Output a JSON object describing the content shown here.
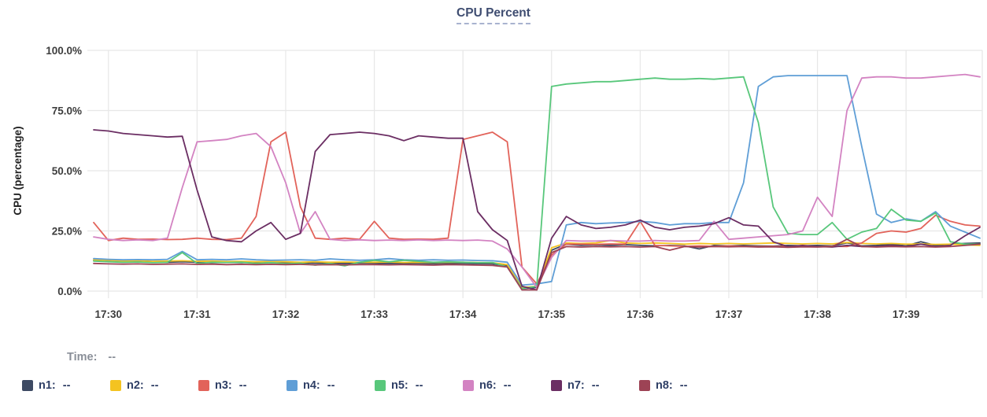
{
  "title": "CPU Percent",
  "time_row": {
    "label": "Time:",
    "value": "--"
  },
  "axes": {
    "y_title": "CPU (percentage)",
    "y_ticks": [
      {
        "label": "100.0%",
        "value": 100
      },
      {
        "label": "75.0%",
        "value": 75
      },
      {
        "label": "50.0%",
        "value": 50
      },
      {
        "label": "25.0%",
        "value": 25
      },
      {
        "label": "0.0%",
        "value": 0
      }
    ],
    "x_ticks": [
      "17:30",
      "17:31",
      "17:32",
      "17:33",
      "17:34",
      "17:35",
      "17:36",
      "17:37",
      "17:38",
      "17:39"
    ]
  },
  "colors": {
    "grid": "#e7e7e7",
    "axis_text": "#3d3d3d",
    "title_text": "#3f4d71",
    "legend_text": "#2f3f66",
    "time_text": "#8a8f98"
  },
  "chart_data": {
    "type": "line",
    "title": "CPU Percent",
    "xlabel": "",
    "ylabel": "CPU (percentage)",
    "ylim": [
      0,
      100
    ],
    "grid": true,
    "legend_position": "bottom",
    "x_times": [
      "17:29:50",
      "17:30:00",
      "17:30:10",
      "17:30:20",
      "17:30:30",
      "17:30:40",
      "17:30:50",
      "17:31:00",
      "17:31:10",
      "17:31:20",
      "17:31:30",
      "17:31:40",
      "17:31:50",
      "17:32:00",
      "17:32:10",
      "17:32:20",
      "17:32:30",
      "17:32:40",
      "17:32:50",
      "17:33:00",
      "17:33:10",
      "17:33:20",
      "17:33:30",
      "17:33:40",
      "17:33:50",
      "17:34:00",
      "17:34:10",
      "17:34:20",
      "17:34:30",
      "17:34:40",
      "17:34:50",
      "17:35:00",
      "17:35:10",
      "17:35:20",
      "17:35:30",
      "17:35:40",
      "17:35:50",
      "17:36:00",
      "17:36:10",
      "17:36:20",
      "17:36:30",
      "17:36:40",
      "17:36:50",
      "17:37:00",
      "17:37:10",
      "17:37:20",
      "17:37:30",
      "17:37:40",
      "17:37:50",
      "17:38:00",
      "17:38:10",
      "17:38:20",
      "17:38:30",
      "17:38:40",
      "17:38:50",
      "17:39:00",
      "17:39:10",
      "17:39:20",
      "17:39:30",
      "17:39:40",
      "17:39:50"
    ],
    "series": [
      {
        "name": "n1",
        "color": "#3d4a63",
        "legend_value": "--",
        "values": [
          12.8,
          12.5,
          12.3,
          12.2,
          12.3,
          12.0,
          12.2,
          12.0,
          11.8,
          12.0,
          11.8,
          12.0,
          11.8,
          11.7,
          11.8,
          11.6,
          11.7,
          11.5,
          11.7,
          11.6,
          11.5,
          11.6,
          11.5,
          11.4,
          11.5,
          11.5,
          11.4,
          11.3,
          10.5,
          1.0,
          1.5,
          17.0,
          19.5,
          19.0,
          19.2,
          19.0,
          19.3,
          19.0,
          18.8,
          19.0,
          18.8,
          17.5,
          19.0,
          18.8,
          19.0,
          18.8,
          18.7,
          19.0,
          18.8,
          19.0,
          18.8,
          20.0,
          18.8,
          19.0,
          19.5,
          18.8,
          20.5,
          19.0,
          19.5,
          19.8,
          20.0
        ]
      },
      {
        "name": "n2",
        "color": "#f4c320",
        "legend_value": "--",
        "values": [
          13.0,
          12.8,
          12.5,
          12.6,
          12.4,
          12.5,
          12.6,
          12.4,
          12.5,
          12.3,
          12.4,
          12.2,
          12.3,
          12.2,
          12.0,
          12.2,
          12.0,
          12.1,
          12.0,
          12.0,
          12.1,
          11.9,
          12.0,
          11.9,
          12.0,
          12.0,
          11.9,
          11.8,
          11.0,
          1.5,
          2.0,
          18.0,
          20.0,
          19.8,
          20.0,
          21.0,
          20.0,
          19.8,
          20.0,
          19.8,
          19.5,
          19.8,
          19.6,
          19.8,
          19.6,
          19.8,
          20.0,
          19.8,
          19.6,
          19.8,
          19.6,
          20.2,
          19.8,
          19.6,
          19.8,
          19.5,
          19.6,
          19.4,
          19.5,
          19.2,
          19.0
        ]
      },
      {
        "name": "n3",
        "color": "#e2635a",
        "legend_value": "--",
        "values": [
          28.5,
          21.0,
          22.0,
          21.5,
          21.6,
          21.4,
          21.5,
          22.0,
          21.5,
          21.4,
          22.0,
          31.0,
          62.0,
          66.0,
          35.0,
          22.0,
          21.5,
          22.0,
          21.5,
          29.0,
          22.0,
          21.5,
          21.6,
          21.5,
          22.0,
          63.0,
          64.5,
          66.0,
          62.0,
          10.0,
          3.0,
          15.0,
          19.5,
          19.5,
          19.4,
          19.6,
          19.5,
          29.0,
          19.0,
          18.8,
          18.6,
          18.8,
          18.6,
          18.8,
          18.6,
          18.5,
          18.6,
          18.5,
          18.6,
          18.5,
          18.6,
          18.5,
          20.0,
          24.0,
          25.0,
          24.5,
          26.0,
          31.5,
          29.0,
          27.5,
          27.0
        ]
      },
      {
        "name": "n4",
        "color": "#5f9ed6",
        "legend_value": "--",
        "values": [
          13.5,
          13.2,
          13.0,
          13.1,
          13.0,
          13.2,
          16.5,
          13.0,
          13.2,
          13.0,
          13.4,
          13.0,
          12.8,
          12.9,
          13.0,
          12.8,
          13.4,
          13.0,
          12.8,
          13.0,
          13.5,
          13.0,
          12.8,
          13.0,
          12.8,
          12.9,
          12.7,
          12.6,
          12.0,
          2.5,
          3.0,
          4.0,
          27.5,
          28.5,
          28.0,
          28.3,
          28.5,
          29.0,
          28.5,
          27.5,
          28.0,
          28.0,
          28.5,
          28.5,
          45.0,
          85.0,
          89.0,
          89.5,
          89.5,
          89.5,
          89.5,
          89.5,
          60.0,
          32.0,
          28.5,
          30.0,
          29.0,
          33.0,
          27.0,
          24.5,
          22.0
        ]
      },
      {
        "name": "n5",
        "color": "#58c77b",
        "legend_value": "--",
        "values": [
          12.5,
          12.2,
          12.0,
          12.1,
          11.8,
          12.0,
          16.0,
          11.5,
          12.0,
          11.9,
          12.0,
          11.5,
          11.8,
          11.4,
          11.6,
          10.8,
          11.5,
          10.5,
          12.0,
          12.8,
          12.2,
          12.8,
          12.4,
          12.0,
          12.2,
          12.0,
          11.8,
          11.9,
          10.0,
          1.0,
          2.0,
          85.0,
          86.0,
          86.5,
          87.0,
          87.0,
          87.5,
          88.0,
          88.5,
          88.0,
          88.0,
          88.3,
          88.0,
          88.5,
          89.0,
          70.0,
          35.0,
          24.0,
          23.5,
          23.5,
          28.5,
          21.5,
          24.5,
          26.0,
          34.0,
          29.5,
          29.0,
          32.5,
          20.5,
          19.5,
          19.5
        ]
      },
      {
        "name": "n6",
        "color": "#d383c2",
        "legend_value": "--",
        "values": [
          22.5,
          21.5,
          21.0,
          21.3,
          21.0,
          22.0,
          43.0,
          62.0,
          62.5,
          63.0,
          64.5,
          65.5,
          60.0,
          45.0,
          24.0,
          33.0,
          21.5,
          21.0,
          21.3,
          21.0,
          21.2,
          21.0,
          21.3,
          21.0,
          21.2,
          21.0,
          21.2,
          20.8,
          17.5,
          10.0,
          1.5,
          14.0,
          21.0,
          20.8,
          20.8,
          21.0,
          20.8,
          20.8,
          21.0,
          20.8,
          20.8,
          21.0,
          29.0,
          21.5,
          22.0,
          22.5,
          23.0,
          23.5,
          25.0,
          39.0,
          31.0,
          75.0,
          88.5,
          89.0,
          89.0,
          88.5,
          88.5,
          89.0,
          89.5,
          90.0,
          89.0
        ]
      },
      {
        "name": "n7",
        "color": "#6b2e63",
        "legend_value": "--",
        "values": [
          67.0,
          66.5,
          65.5,
          65.0,
          64.5,
          64.0,
          64.3,
          42.0,
          22.5,
          21.0,
          20.5,
          25.0,
          28.5,
          21.5,
          24.0,
          58.0,
          65.0,
          65.5,
          66.0,
          65.5,
          64.5,
          62.5,
          64.5,
          64.0,
          63.5,
          63.5,
          33.0,
          25.5,
          21.0,
          2.0,
          0.5,
          22.0,
          31.0,
          27.5,
          26.0,
          26.5,
          27.5,
          29.5,
          26.5,
          25.5,
          26.5,
          27.0,
          28.0,
          30.5,
          27.5,
          27.0,
          20.5,
          18.5,
          19.0,
          18.5,
          18.3,
          19.0,
          18.5,
          18.5,
          19.0,
          18.5,
          19.5,
          18.5,
          19.0,
          23.0,
          26.5
        ]
      },
      {
        "name": "n8",
        "color": "#9d4355",
        "legend_value": "--",
        "values": [
          11.5,
          11.3,
          11.2,
          11.3,
          11.1,
          11.2,
          11.3,
          11.1,
          11.2,
          11.0,
          11.1,
          11.0,
          11.1,
          11.0,
          11.1,
          10.9,
          11.0,
          10.9,
          11.0,
          11.0,
          10.9,
          11.0,
          10.9,
          10.8,
          11.0,
          10.9,
          10.8,
          10.7,
          10.0,
          0.5,
          0.5,
          16.0,
          18.5,
          18.3,
          18.5,
          18.4,
          18.5,
          18.3,
          18.5,
          17.0,
          18.5,
          18.3,
          18.5,
          18.4,
          18.5,
          18.3,
          18.4,
          18.2,
          18.4,
          18.3,
          18.5,
          21.5,
          18.5,
          18.3,
          18.5,
          18.4,
          18.5,
          18.3,
          18.5,
          19.0,
          19.5
        ]
      }
    ]
  }
}
